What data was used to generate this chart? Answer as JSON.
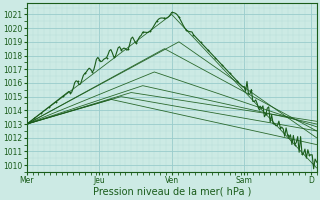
{
  "xlabel": "Pression niveau de la mer( hPa )",
  "bg_color": "#cceae4",
  "grid_major_color": "#99cccc",
  "grid_minor_color": "#b8ddd8",
  "line_color": "#1a5c1a",
  "ylim": [
    1009.5,
    1021.8
  ],
  "xlim": [
    0,
    200
  ],
  "yticks": [
    1010,
    1011,
    1012,
    1013,
    1014,
    1015,
    1016,
    1017,
    1018,
    1019,
    1020,
    1021
  ],
  "day_labels": [
    "Mer",
    "Jeu",
    "Ven",
    "Sam",
    "D"
  ],
  "day_positions": [
    0,
    50,
    100,
    150,
    196
  ],
  "xlabel_fontsize": 7,
  "tick_fontsize": 5.5
}
